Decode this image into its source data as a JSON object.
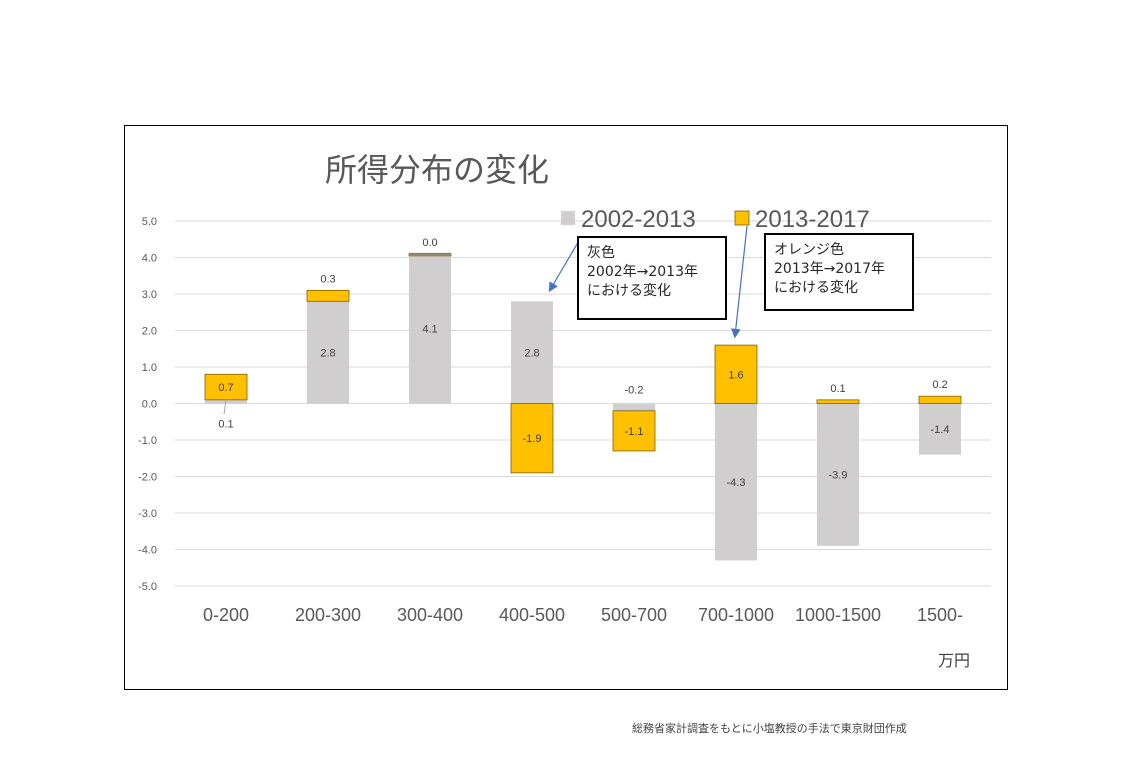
{
  "chart_data": {
    "type": "bar",
    "stacked": true,
    "title": "所得分布の変化",
    "categories": [
      "0-200",
      "200-300",
      "300-400",
      "400-500",
      "500-700",
      "700-1000",
      "1000-1500",
      "1500-"
    ],
    "x_unit": "万円",
    "series": [
      {
        "name": "2002-2013",
        "color": "#d0cece",
        "values": [
          0.1,
          2.8,
          4.1,
          2.8,
          -0.2,
          -4.3,
          -3.9,
          -1.4
        ]
      },
      {
        "name": "2013-2017",
        "color": "#ffc000",
        "values": [
          0.7,
          0.3,
          0.0,
          -1.9,
          -1.1,
          1.6,
          0.1,
          0.2
        ]
      }
    ],
    "ylim": [
      -5.0,
      5.0
    ],
    "yticks": [
      "5.0",
      "4.0",
      "3.0",
      "2.0",
      "1.0",
      "0.0",
      "-1.0",
      "-2.0",
      "-3.0",
      "-4.0",
      "-5.0"
    ],
    "grid": true,
    "legend_position": "top-right"
  },
  "callouts": [
    {
      "lines": [
        "灰色",
        "2002年→2013年",
        "における変化"
      ]
    },
    {
      "lines": [
        "オレンジ色",
        "2013年→2017年",
        "における変化"
      ]
    }
  ],
  "source_note": "総務省家計調査をもとに小塩教授の手法で東京財団作成"
}
